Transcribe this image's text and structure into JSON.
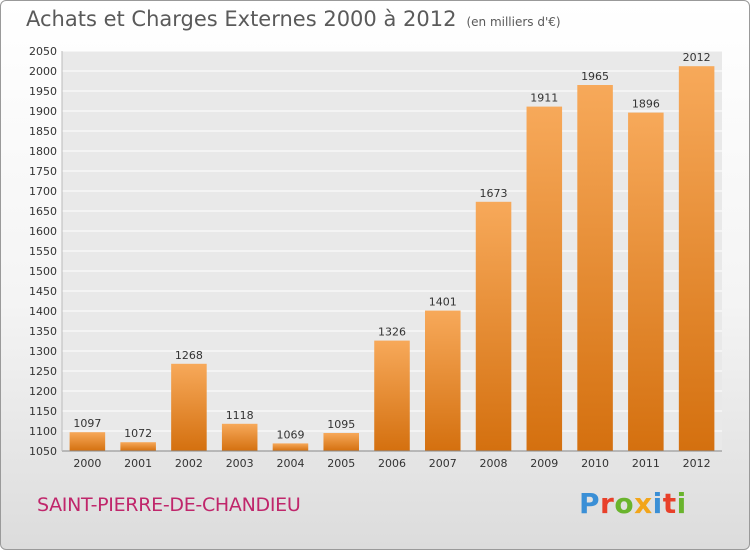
{
  "header": {
    "title": "Achats et Charges Externes 2000 à 2012",
    "subtitle": "(en milliers d'€)"
  },
  "footer": {
    "place": "SAINT-PIERRE-DE-CHANDIEU",
    "logo": "Proxiti",
    "logo_colors": [
      "#3a8fd6",
      "#e8402a",
      "#6ab42d",
      "#f2a51a",
      "#3a8fd6",
      "#e8402a",
      "#6ab42d"
    ]
  },
  "colors": {
    "bar_light": "#f7a95a",
    "bar_dark": "#d4700f",
    "grid": "#ffffff",
    "plot_bg": "#e9e9e9"
  },
  "chart_data": {
    "type": "bar",
    "title": "Achats et Charges Externes 2000 à 2012",
    "subtitle": "(en milliers d'€)",
    "categories": [
      "2000",
      "2001",
      "2002",
      "2003",
      "2004",
      "2005",
      "2006",
      "2007",
      "2008",
      "2009",
      "2010",
      "2011",
      "2012"
    ],
    "values": [
      1097,
      1072,
      1268,
      1118,
      1069,
      1095,
      1326,
      1401,
      1673,
      1911,
      1965,
      1896,
      2012
    ],
    "ylim": [
      1050,
      2050
    ],
    "ytick_step": 50,
    "grid": true,
    "xlabel": "",
    "ylabel": ""
  }
}
